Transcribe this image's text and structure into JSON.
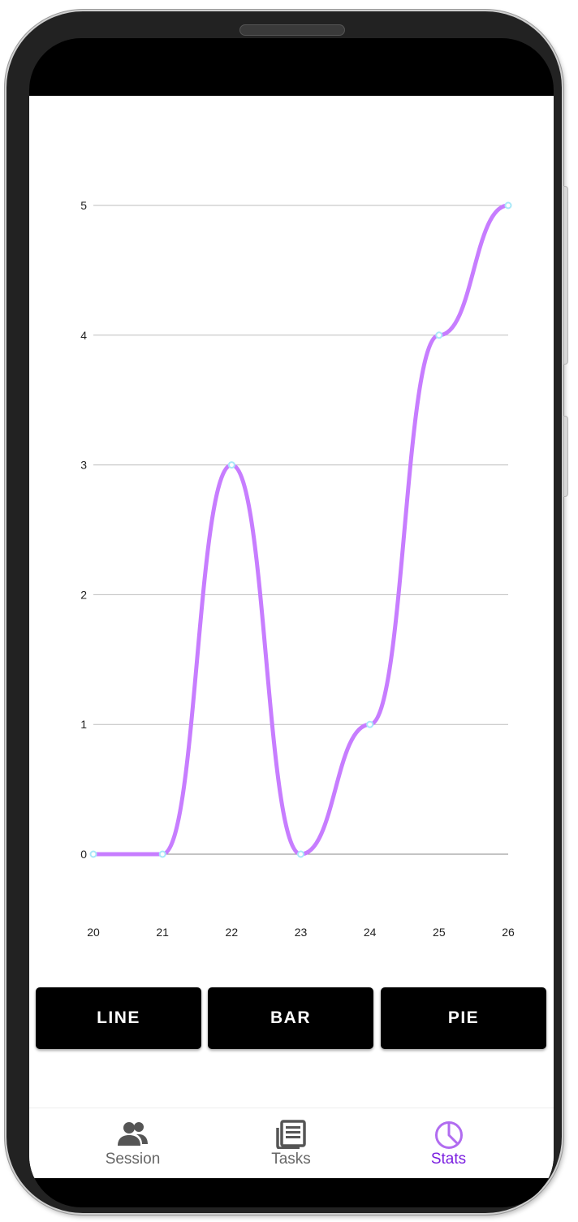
{
  "chart_data": {
    "type": "line",
    "x": [
      20,
      21,
      22,
      23,
      24,
      25,
      26
    ],
    "values": [
      0,
      0,
      3,
      0,
      1,
      4,
      5
    ],
    "x_tick_labels": [
      "20",
      "21",
      "22",
      "23",
      "24",
      "25",
      "26"
    ],
    "y_tick_labels": [
      "0",
      "1",
      "2",
      "3",
      "4",
      "5"
    ],
    "ylim": [
      0,
      5
    ],
    "xlim": [
      20,
      26
    ],
    "grid": true,
    "smooth": true,
    "title": "",
    "xlabel": "",
    "ylabel": "",
    "line_color": "#c77dff",
    "point_color": "#a8e8f8"
  },
  "buttons": {
    "line_label": "LINE",
    "bar_label": "BAR",
    "pie_label": "PIE"
  },
  "nav": {
    "session_label": "Session",
    "tasks_label": "Tasks",
    "stats_label": "Stats",
    "active": "Stats",
    "session_icon": "people-icon",
    "tasks_icon": "newspaper-icon",
    "stats_icon": "pie-chart-icon"
  },
  "colors": {
    "accent": "#7b1fe0",
    "button_bg": "#000000",
    "button_text": "#ffffff"
  }
}
